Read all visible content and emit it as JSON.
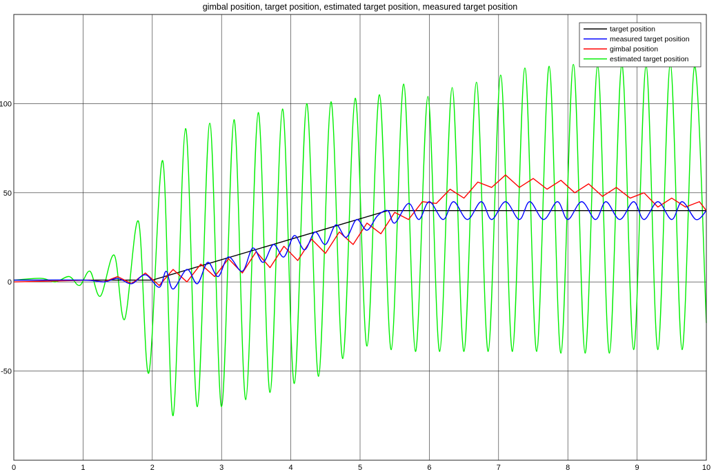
{
  "chart_data": {
    "type": "line",
    "title": "gimbal position, target position, estimated target position, measured target position",
    "xlabel": "",
    "ylabel": "",
    "xlim": [
      0,
      10
    ],
    "ylim": [
      -100,
      150
    ],
    "xticks": [
      0,
      1,
      2,
      3,
      4,
      5,
      6,
      7,
      8,
      9,
      10
    ],
    "yticks": [
      -50,
      0,
      50,
      100
    ],
    "grid": true,
    "legend_position": "top-right",
    "series": [
      {
        "name": "target position",
        "color": "#000000",
        "x": [
          0,
          2.0,
          5.4,
          10
        ],
        "y": [
          1,
          1,
          40,
          40
        ]
      },
      {
        "name": "measured target position",
        "color": "#0000ff",
        "x": [
          0,
          1.0,
          1.3,
          1.5,
          1.7,
          1.9,
          2.1,
          2.2,
          2.3,
          2.5,
          2.65,
          2.8,
          2.95,
          3.1,
          3.3,
          3.45,
          3.6,
          3.75,
          3.9,
          4.05,
          4.2,
          4.35,
          4.5,
          4.65,
          4.8,
          4.95,
          5.1,
          5.25,
          5.4,
          5.5,
          5.7,
          5.85,
          6.0,
          6.2,
          6.35,
          6.55,
          6.75,
          6.9,
          7.1,
          7.3,
          7.45,
          7.65,
          7.85,
          8.0,
          8.2,
          8.4,
          8.55,
          8.75,
          8.95,
          9.1,
          9.3,
          9.5,
          9.65,
          9.85,
          10.0
        ],
        "y": [
          1,
          1,
          0,
          2,
          -1,
          4,
          -3,
          6,
          -4,
          7,
          -1,
          11,
          3,
          14,
          6,
          19,
          11,
          21,
          14,
          26,
          18,
          28,
          21,
          32,
          25,
          35,
          29,
          37,
          40,
          33,
          44,
          35,
          45,
          35,
          45,
          35,
          45,
          35,
          45,
          35,
          45,
          35,
          45,
          35,
          45,
          35,
          45,
          35,
          45,
          35,
          45,
          35,
          45,
          35,
          40
        ]
      },
      {
        "name": "gimbal position",
        "color": "#ff0000",
        "x": [
          0,
          1.1,
          1.3,
          1.5,
          1.7,
          1.9,
          2.1,
          2.3,
          2.5,
          2.7,
          2.9,
          3.1,
          3.3,
          3.5,
          3.7,
          3.9,
          4.1,
          4.3,
          4.5,
          4.7,
          4.9,
          5.1,
          5.3,
          5.5,
          5.7,
          5.9,
          6.1,
          6.3,
          6.5,
          6.7,
          6.9,
          7.1,
          7.3,
          7.5,
          7.7,
          7.9,
          8.1,
          8.3,
          8.5,
          8.7,
          8.9,
          9.1,
          9.3,
          9.5,
          9.7,
          9.9,
          10.0
        ],
        "y": [
          0,
          1,
          0,
          3,
          -1,
          5,
          -2,
          7,
          0,
          10,
          3,
          13,
          5,
          17,
          8,
          20,
          12,
          24,
          16,
          28,
          21,
          33,
          27,
          39,
          35,
          45,
          44,
          52,
          47,
          56,
          53,
          60,
          53,
          58,
          52,
          57,
          50,
          55,
          48,
          53,
          47,
          50,
          42,
          47,
          42,
          45,
          40
        ]
      },
      {
        "name": "estimated target position",
        "color": "#00ee00",
        "x": [
          0,
          0.4,
          0.6,
          0.8,
          0.95,
          1.1,
          1.25,
          1.45,
          1.6,
          1.8,
          1.95,
          2.15,
          2.3,
          2.48,
          2.65,
          2.83,
          3.0,
          3.18,
          3.35,
          3.53,
          3.7,
          3.88,
          4.05,
          4.23,
          4.4,
          4.58,
          4.75,
          4.93,
          5.1,
          5.28,
          5.45,
          5.63,
          5.8,
          5.98,
          6.15,
          6.33,
          6.5,
          6.68,
          6.85,
          7.03,
          7.2,
          7.38,
          7.55,
          7.73,
          7.9,
          8.08,
          8.25,
          8.43,
          8.6,
          8.78,
          8.95,
          9.13,
          9.3,
          9.48,
          9.65,
          9.83,
          10.0
        ],
        "y": [
          1,
          2,
          0,
          3,
          -2,
          6,
          -8,
          15,
          -21,
          34,
          -51,
          68,
          -75,
          86,
          -70,
          89,
          -70,
          91,
          -66,
          95,
          -62,
          97,
          -57,
          100,
          -53,
          101,
          -43,
          103,
          -36,
          105,
          -38,
          111,
          -39,
          104,
          -39,
          109,
          -39,
          112,
          -39,
          116,
          -39,
          120,
          -39,
          121,
          -40,
          122,
          -40,
          121,
          -40,
          122,
          -38,
          121,
          -38,
          122,
          -38,
          121,
          -23
        ]
      }
    ]
  }
}
